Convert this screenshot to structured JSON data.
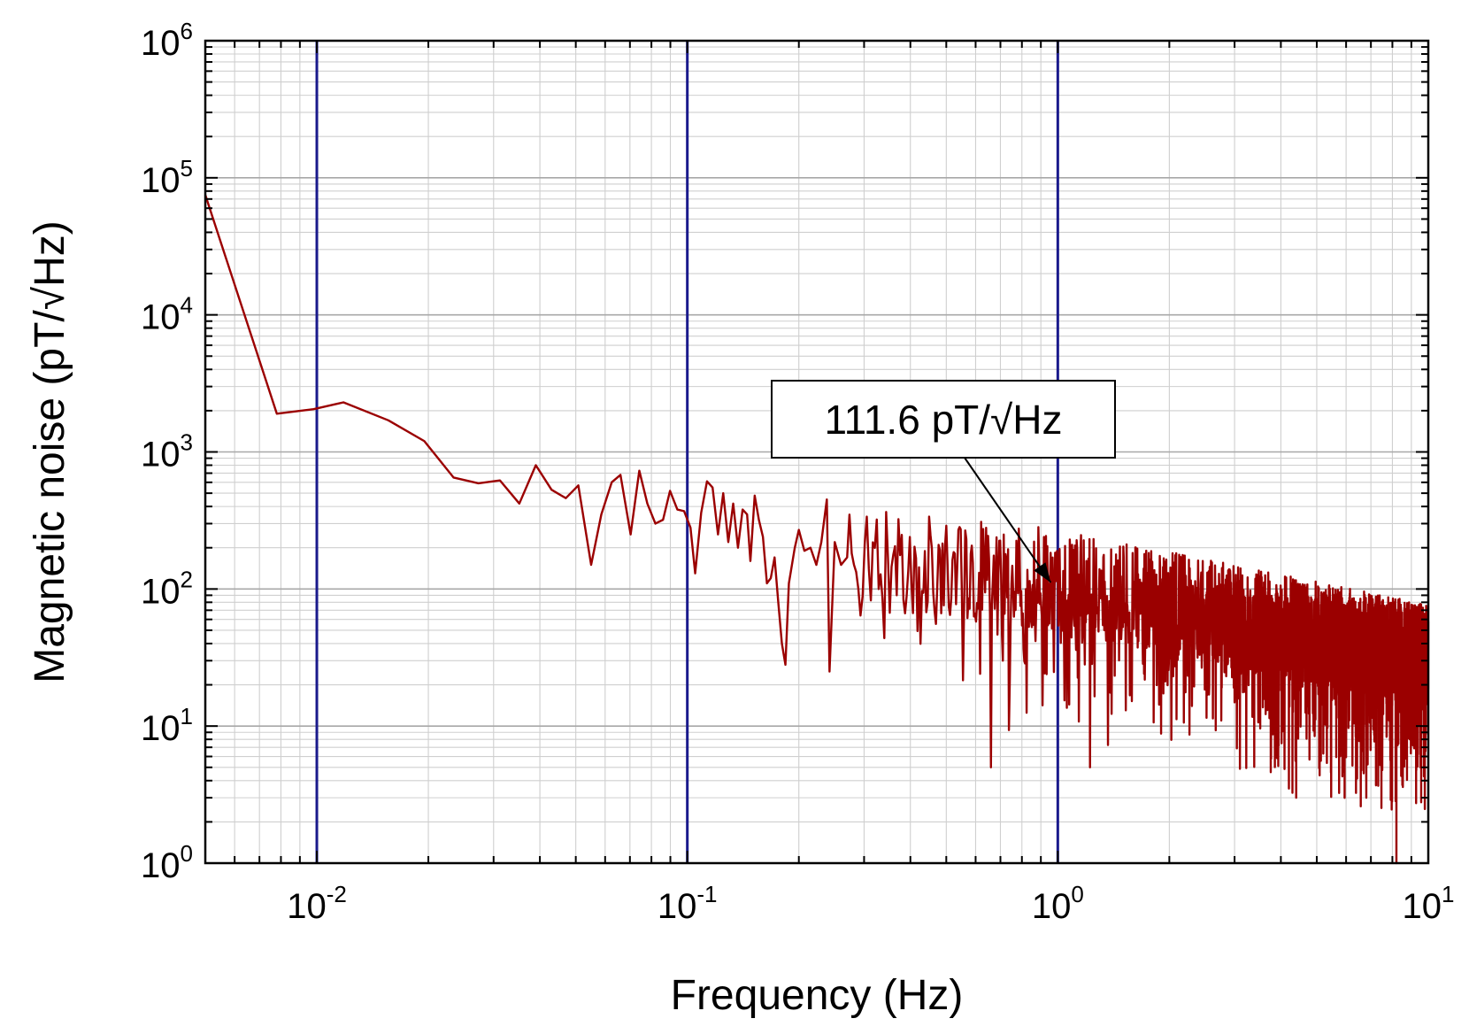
{
  "chart_data": {
    "type": "line",
    "title": "",
    "xlabel": "Frequency (Hz)",
    "ylabel": "Magnetic noise (pT/√Hz)",
    "x_scale": "log",
    "y_scale": "log",
    "xlim": [
      0.005,
      10
    ],
    "ylim": [
      1,
      1000000
    ],
    "grid": true,
    "x_ticks": [
      {
        "base": "10",
        "exp": "-2",
        "value": 0.01
      },
      {
        "base": "10",
        "exp": "-1",
        "value": 0.1
      },
      {
        "base": "10",
        "exp": "0",
        "value": 1
      },
      {
        "base": "10",
        "exp": "1",
        "value": 10
      }
    ],
    "y_ticks": [
      {
        "base": "10",
        "exp": "0",
        "value": 1
      },
      {
        "base": "10",
        "exp": "1",
        "value": 10
      },
      {
        "base": "10",
        "exp": "2",
        "value": 100
      },
      {
        "base": "10",
        "exp": "3",
        "value": 1000
      },
      {
        "base": "10",
        "exp": "4",
        "value": 10000
      },
      {
        "base": "10",
        "exp": "5",
        "value": 100000
      },
      {
        "base": "10",
        "exp": "6",
        "value": 1000000
      }
    ],
    "reference_lines_x": [
      0.01,
      0.1,
      1
    ],
    "colors": {
      "series": "#9b0000",
      "reference_lines": "#1a1a8c",
      "grid": "#cfcfcf"
    },
    "series": [
      {
        "points": [
          [
            0.005,
            75000
          ],
          [
            0.0078,
            1900
          ],
          [
            0.0098,
            2050
          ],
          [
            0.0118,
            2300
          ],
          [
            0.0156,
            1700
          ],
          [
            0.0195,
            1200
          ],
          [
            0.0234,
            650
          ],
          [
            0.0273,
            590
          ],
          [
            0.0312,
            620
          ],
          [
            0.0352,
            420
          ],
          [
            0.039,
            800
          ],
          [
            0.043,
            530
          ],
          [
            0.047,
            460
          ],
          [
            0.0508,
            570
          ],
          [
            0.055,
            150
          ],
          [
            0.0586,
            350
          ],
          [
            0.0625,
            600
          ],
          [
            0.066,
            680
          ],
          [
            0.0703,
            250
          ],
          [
            0.0742,
            730
          ],
          [
            0.078,
            420
          ],
          [
            0.082,
            300
          ],
          [
            0.086,
            320
          ],
          [
            0.0898,
            520
          ],
          [
            0.094,
            380
          ],
          [
            0.098,
            370
          ],
          [
            0.102,
            280
          ],
          [
            0.105,
            130
          ],
          [
            0.109,
            360
          ],
          [
            0.113,
            610
          ],
          [
            0.117,
            550
          ],
          [
            0.121,
            250
          ],
          [
            0.125,
            500
          ],
          [
            0.129,
            220
          ],
          [
            0.133,
            420
          ],
          [
            0.137,
            200
          ],
          [
            0.141,
            380
          ],
          [
            0.145,
            350
          ],
          [
            0.148,
            160
          ],
          [
            0.152,
            480
          ],
          [
            0.156,
            320
          ],
          [
            0.16,
            240
          ],
          [
            0.164,
            110
          ],
          [
            0.168,
            120
          ],
          [
            0.172,
            170
          ],
          [
            0.176,
            80
          ],
          [
            0.18,
            40
          ],
          [
            0.184,
            28
          ],
          [
            0.188,
            110
          ],
          [
            0.195,
            200
          ],
          [
            0.2,
            270
          ],
          [
            0.207,
            190
          ],
          [
            0.215,
            200
          ],
          [
            0.223,
            150
          ],
          [
            0.23,
            220
          ],
          [
            0.238,
            450
          ],
          [
            0.242,
            25
          ],
          [
            0.25,
            220
          ],
          [
            0.26,
            150
          ],
          [
            0.27,
            170
          ]
        ],
        "noise_envelope": {
          "x_range": [
            0.27,
            10
          ],
          "median_at_0.3": 130,
          "median_at_1": 90,
          "median_at_10": 25,
          "min_dips": [
            [
              0.66,
              5
            ],
            [
              1.22,
              5
            ],
            [
              4.4,
              3
            ],
            [
              6.8,
              3
            ],
            [
              8.2,
              1
            ]
          ]
        }
      }
    ],
    "annotation": {
      "text": "111.6 pT/√Hz",
      "x": 1,
      "y": 111.6
    }
  }
}
